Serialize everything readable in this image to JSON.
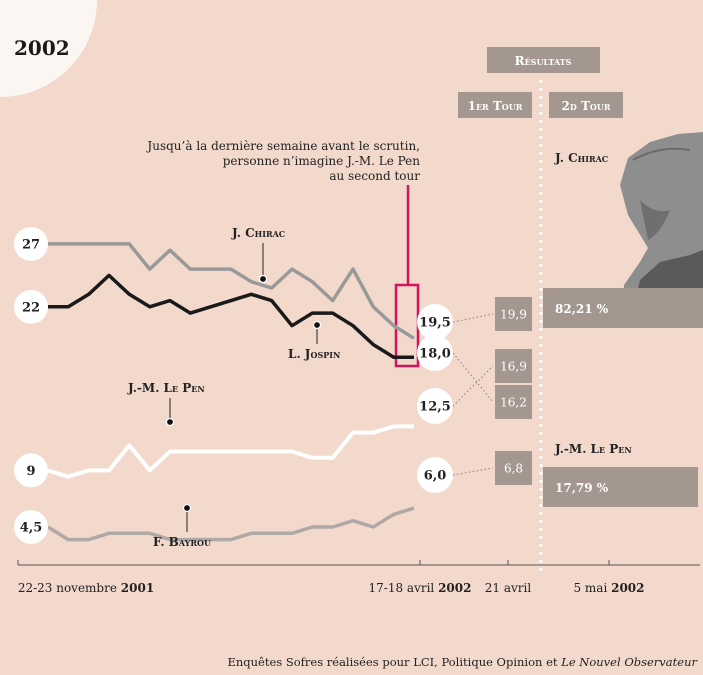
{
  "chart_data": {
    "type": "line",
    "title": "2002",
    "annotation": [
      "Jusqu’à la dernière semaine avant le scrutin,",
      "personne n’imagine J.-M. Le Pen",
      "au second tour"
    ],
    "x_ticks": [
      {
        "pre": "22-23 novembre ",
        "bold": "2001"
      },
      {
        "pre": "17-18 avril ",
        "bold": "2002"
      },
      {
        "pre": "21 avril",
        "bold": ""
      },
      {
        "pre": "5 mai ",
        "bold": "2002"
      }
    ],
    "series": [
      {
        "name": "J. Chirac",
        "start_label": "27",
        "end_label": "19,5",
        "values": [
          27,
          27,
          27,
          27,
          27,
          25,
          26.5,
          25,
          25,
          25,
          24,
          23.5,
          25,
          24,
          22.5,
          25,
          22,
          20.5,
          19.5
        ]
      },
      {
        "name": "L. Jospin",
        "start_label": "22",
        "end_label": "18,0",
        "values": [
          22,
          22,
          23,
          24.5,
          23,
          22,
          22.5,
          21.5,
          22,
          22.5,
          23,
          22.5,
          20.5,
          21.5,
          21.5,
          20.5,
          19,
          18,
          18
        ]
      },
      {
        "name": "J.-M. Le Pen",
        "start_label": "9",
        "end_label": "12,5",
        "values": [
          9,
          8.5,
          9,
          9,
          11,
          9,
          10.5,
          10.5,
          10.5,
          10.5,
          10.5,
          10.5,
          10.5,
          10,
          10,
          12,
          12,
          12.5,
          12.5
        ]
      },
      {
        "name": "F. Bayrou",
        "start_label": "4,5",
        "end_label": "6,0",
        "values": [
          4.5,
          3.5,
          3.5,
          4,
          4,
          4,
          3.5,
          3.5,
          3.5,
          3.5,
          4,
          4,
          4,
          4.5,
          4.5,
          5,
          4.5,
          5.5,
          6
        ]
      }
    ],
    "first_round": {
      "header": "1er Tour",
      "values": [
        "19,9",
        "16,9",
        "16,2",
        "6,8"
      ]
    },
    "second_round": {
      "header": "2d Tour",
      "candidates": [
        {
          "name": "J. Chirac",
          "value": "82,21 %"
        },
        {
          "name": "J.-M. Le Pen",
          "value": "17,79 %"
        }
      ]
    },
    "results_header": "Résultats",
    "source": {
      "text": "Enquêtes Sofres réalisées pour LCI, Politique Opinion et ",
      "italic": "Le Nouvel Observateur"
    },
    "colors": {
      "chirac": "#999999",
      "jospin": "#1a1a1a",
      "lepen": "#ffffff",
      "bayrou": "#b0a8a5",
      "highlight": "#d4145a",
      "box": "#a39790",
      "background": "#f2d9cc"
    }
  }
}
